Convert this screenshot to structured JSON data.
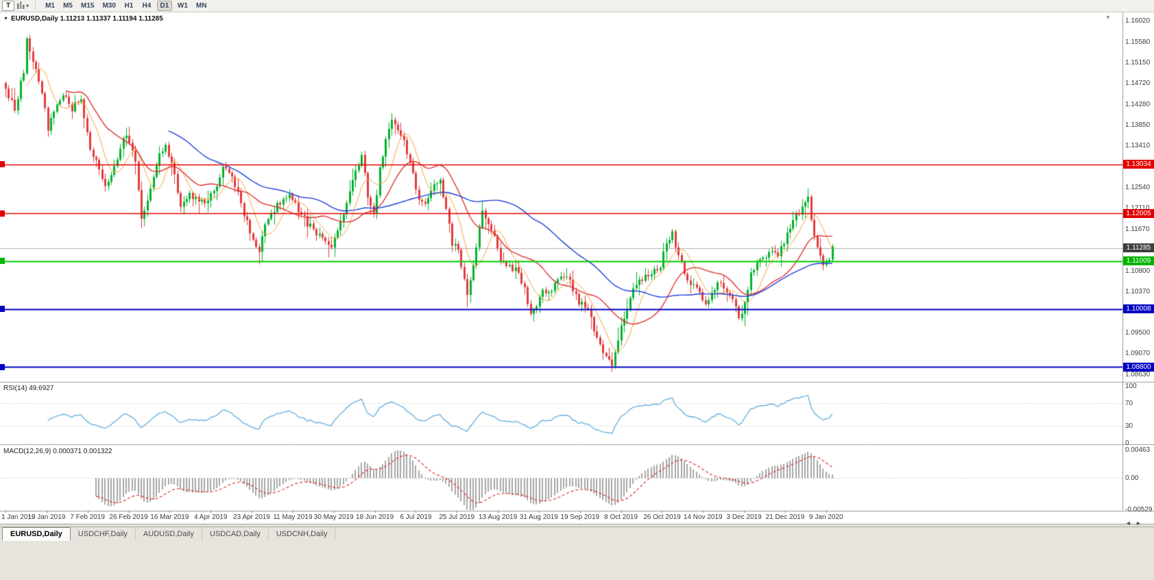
{
  "toolbar": {
    "tool_button_label": "T",
    "timeframes": [
      "M1",
      "M5",
      "M15",
      "M30",
      "H1",
      "H4",
      "D1",
      "W1",
      "MN"
    ],
    "active_timeframe": "D1"
  },
  "chart": {
    "symbol": "EURUSD",
    "period": "Daily",
    "header_text": "EURUSD,Daily 1.11213 1.11337 1.11194 1.11285",
    "open": "1.11213",
    "high": "1.11337",
    "low": "1.11194",
    "close": "1.11285"
  },
  "price_axis": {
    "labels": [
      "1.16020",
      "1.15580",
      "1.15150",
      "1.14720",
      "1.14280",
      "1.13850",
      "1.13410",
      "1.12540",
      "1.12110",
      "1.11670",
      "1.10800",
      "1.10370",
      "1.09500",
      "1.09070",
      "1.08630"
    ],
    "min": 1.085,
    "max": 1.1621
  },
  "tags": [
    {
      "text": "1.13034",
      "price": 1.13034,
      "color": "#e00000",
      "name": "resistance-line-tag",
      "marker": true
    },
    {
      "text": "1.12005",
      "price": 1.12005,
      "color": "#e00000",
      "name": "resistance-line-tag",
      "marker": true
    },
    {
      "text": "1.11285",
      "price": 1.11285,
      "color": "#3f3f3f",
      "name": "current-price-tag",
      "marker": false
    },
    {
      "text": "1.11009",
      "price": 1.11009,
      "color": "#00b400",
      "name": "support-line-tag",
      "marker": true
    },
    {
      "text": "1.10008",
      "price": 1.10008,
      "color": "#0000c0",
      "name": "support-line-tag",
      "marker": true
    },
    {
      "text": "1.08800",
      "price": 1.088,
      "color": "#0000c0",
      "name": "support-line-tag",
      "marker": true
    }
  ],
  "panels": {
    "rsi": {
      "label": "RSI(14) 49.6927",
      "axis_labels": [
        {
          "text": "100",
          "value": 100
        },
        {
          "text": "70",
          "value": 70
        },
        {
          "text": "30",
          "value": 30
        },
        {
          "text": "0",
          "value": 0
        }
      ],
      "levels": [
        70,
        30
      ],
      "line_color": "#53a6d8"
    },
    "macd": {
      "label": "MACD(12,26,9) 0.000371 0.001322",
      "axis_labels": [
        {
          "text": "0.00463",
          "value": 0.00463
        },
        {
          "text": "0.00",
          "value": 0
        },
        {
          "text": "-0.00529",
          "value": -0.00529
        }
      ],
      "max": 0.00463,
      "min": -0.00529,
      "histogram_color": "#a6a6a6",
      "signal_color": "#e03030"
    }
  },
  "date_axis": [
    "1 Jan 2019",
    "19 Jan 2019",
    "7 Feb 2019",
    "26 Feb 2019",
    "16 Mar 2019",
    "4 Apr 2019",
    "23 Apr 2019",
    "11 May 2019",
    "30 May 2019",
    "18 Jun 2019",
    "6 Jul 2019",
    "25 Jul 2019",
    "13 Aug 2019",
    "31 Aug 2019",
    "19 Sep 2019",
    "8 Oct 2019",
    "26 Oct 2019",
    "14 Nov 2019",
    "3 Dec 2019",
    "21 Dec 2019",
    "9 Jan 2020"
  ],
  "tabs": [
    {
      "label": "EURUSD,Daily",
      "active": true
    },
    {
      "label": "USDCHF,Daily",
      "active": false
    },
    {
      "label": "AUDUSD,Daily",
      "active": false
    },
    {
      "label": "USDCAD,Daily",
      "active": false
    },
    {
      "label": "USDCNH,Daily",
      "active": false
    }
  ],
  "chart_data": {
    "type": "candlestick",
    "symbol": "EURUSD",
    "timeframe": "D1",
    "bars": 275,
    "price_range": {
      "min": 1.085,
      "max": 1.1621
    },
    "current_bid": 1.11285,
    "last_ohlc": {
      "open": 1.11213,
      "high": 1.11337,
      "low": 1.11194,
      "close": 1.11285
    },
    "colors": {
      "up": "#00b22c",
      "down": "#e23b3b"
    },
    "horizontal_lines": [
      {
        "price": 1.13034,
        "color": "#e00000",
        "width": 1.4
      },
      {
        "price": 1.12005,
        "color": "#e00000",
        "width": 1.4
      },
      {
        "price": 1.11009,
        "color": "#00c800",
        "width": 2
      },
      {
        "price": 1.10008,
        "color": "#0000c8",
        "width": 2
      },
      {
        "price": 1.088,
        "color": "#0000c8",
        "width": 2
      }
    ],
    "moving_averages": [
      {
        "period": 8,
        "color": "#f5a53a",
        "width": 1
      },
      {
        "period": 21,
        "color": "#e03030",
        "width": 1.4
      },
      {
        "period": 55,
        "color": "#1f3fd8",
        "width": 1.4
      }
    ],
    "close_anchors": [
      [
        0,
        1.1455
      ],
      [
        3,
        1.142
      ],
      [
        6,
        1.15
      ],
      [
        7,
        1.1568
      ],
      [
        9,
        1.152
      ],
      [
        12,
        1.1455
      ],
      [
        14,
        1.138
      ],
      [
        16,
        1.141
      ],
      [
        19,
        1.145
      ],
      [
        22,
        1.142
      ],
      [
        25,
        1.144
      ],
      [
        28,
        1.134
      ],
      [
        31,
        1.129
      ],
      [
        33,
        1.1255
      ],
      [
        36,
        1.13
      ],
      [
        38,
        1.134
      ],
      [
        40,
        1.137
      ],
      [
        43,
        1.131
      ],
      [
        45,
        1.119
      ],
      [
        48,
        1.125
      ],
      [
        51,
        1.132
      ],
      [
        53,
        1.1345
      ],
      [
        56,
        1.128
      ],
      [
        58,
        1.122
      ],
      [
        61,
        1.124
      ],
      [
        64,
        1.1225
      ],
      [
        67,
        1.123
      ],
      [
        70,
        1.126
      ],
      [
        72,
        1.13
      ],
      [
        75,
        1.128
      ],
      [
        78,
        1.122
      ],
      [
        81,
        1.116
      ],
      [
        84,
        1.1125
      ],
      [
        86,
        1.118
      ],
      [
        89,
        1.121
      ],
      [
        92,
        1.123
      ],
      [
        94,
        1.124
      ],
      [
        97,
        1.121
      ],
      [
        100,
        1.118
      ],
      [
        103,
        1.116
      ],
      [
        106,
        1.1145
      ],
      [
        108,
        1.113
      ],
      [
        110,
        1.1165
      ],
      [
        113,
        1.122
      ],
      [
        116,
        1.129
      ],
      [
        118,
        1.132
      ],
      [
        120,
        1.124
      ],
      [
        122,
        1.12
      ],
      [
        124,
        1.129
      ],
      [
        126,
        1.136
      ],
      [
        128,
        1.139
      ],
      [
        131,
        1.137
      ],
      [
        133,
        1.133
      ],
      [
        135,
        1.128
      ],
      [
        137,
        1.123
      ],
      [
        139,
        1.1215
      ],
      [
        141,
        1.125
      ],
      [
        144,
        1.127
      ],
      [
        146,
        1.121
      ],
      [
        148,
        1.114
      ],
      [
        150,
        1.112
      ],
      [
        152,
        1.106
      ],
      [
        153,
        1.103
      ],
      [
        155,
        1.109
      ],
      [
        157,
        1.117
      ],
      [
        158,
        1.12
      ],
      [
        160,
        1.118
      ],
      [
        162,
        1.115
      ],
      [
        164,
        1.11
      ],
      [
        167,
        1.109
      ],
      [
        170,
        1.108
      ],
      [
        172,
        1.104
      ],
      [
        174,
        1.099
      ],
      [
        176,
        1.101
      ],
      [
        178,
        1.1035
      ],
      [
        181,
        1.1045
      ],
      [
        184,
        1.107
      ],
      [
        186,
        1.1075
      ],
      [
        188,
        1.104
      ],
      [
        190,
        1.1015
      ],
      [
        193,
        1.1
      ],
      [
        196,
        1.094
      ],
      [
        198,
        1.0905
      ],
      [
        200,
        1.089
      ],
      [
        201,
        1.088
      ],
      [
        203,
        1.094
      ],
      [
        205,
        1.098
      ],
      [
        208,
        1.104
      ],
      [
        211,
        1.1065
      ],
      [
        214,
        1.1075
      ],
      [
        217,
        1.109
      ],
      [
        219,
        1.114
      ],
      [
        221,
        1.116
      ],
      [
        223,
        1.111
      ],
      [
        226,
        1.106
      ],
      [
        229,
        1.104
      ],
      [
        232,
        1.101
      ],
      [
        234,
        1.103
      ],
      [
        236,
        1.106
      ],
      [
        238,
        1.104
      ],
      [
        241,
        1.1015
      ],
      [
        243,
        1.0985
      ],
      [
        245,
        1.101
      ],
      [
        247,
        1.108
      ],
      [
        250,
        1.11
      ],
      [
        253,
        1.112
      ],
      [
        256,
        1.1115
      ],
      [
        258,
        1.114
      ],
      [
        260,
        1.117
      ],
      [
        262,
        1.1195
      ],
      [
        264,
        1.1215
      ],
      [
        266,
        1.1235
      ],
      [
        267,
        1.119
      ],
      [
        269,
        1.113
      ],
      [
        271,
        1.1095
      ],
      [
        273,
        1.111
      ],
      [
        274,
        1.11285
      ]
    ],
    "indicators": {
      "rsi": {
        "period": 14,
        "last": 49.6927,
        "range": [
          0,
          100
        ],
        "levels": [
          30,
          70
        ]
      },
      "macd": {
        "fast": 12,
        "slow": 26,
        "signal": 9,
        "last_macd": 0.000371,
        "last_signal": 0.001322,
        "range": [
          -0.00529,
          0.00463
        ]
      }
    }
  }
}
